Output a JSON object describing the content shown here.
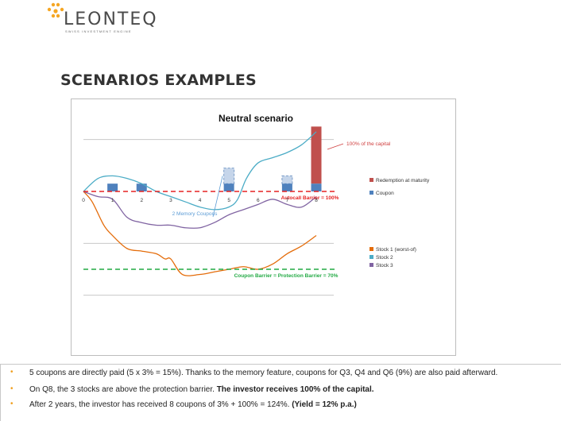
{
  "logo": {
    "brand": "LEONTEQ",
    "tagline": "SWISS INVESTMENT ENGINE",
    "accent": "#f5a623"
  },
  "page": {
    "title": "SCENARIOS EXAMPLES"
  },
  "chart_data": {
    "type": "bar",
    "title": "Neutral scenario",
    "x": [
      0,
      1,
      2,
      3,
      4,
      5,
      6,
      7,
      8
    ],
    "x_tick_labels": [
      "0",
      "1",
      "2",
      "3",
      "4",
      "5",
      "6",
      "7",
      "8"
    ],
    "grid": true,
    "legend_position": "right",
    "bar_series": [
      {
        "name": "Redemption at maturity",
        "color": "#c0504d",
        "points": [
          {
            "x": 8,
            "value": 100
          }
        ]
      },
      {
        "name": "Coupon",
        "color": "#4f81bd",
        "points": [
          {
            "x": 1,
            "value": 3
          },
          {
            "x": 2,
            "value": 3
          },
          {
            "x": 5,
            "value": 3
          },
          {
            "x": 7,
            "value": 3
          },
          {
            "x": 8,
            "value": 3
          }
        ]
      },
      {
        "name": "2 Memory Coupons",
        "color": "#c5d5ea",
        "points": [
          {
            "x": 5,
            "value": 6
          },
          {
            "x": 7,
            "value": 3
          }
        ]
      }
    ],
    "line_series": [
      {
        "name": "Stock 1 (worst-of)",
        "color": "#e46c0a",
        "x": [
          0,
          0.3,
          0.7,
          1,
          1.5,
          2,
          2.5,
          2.8,
          3,
          3.4,
          4,
          4.5,
          5,
          5.5,
          6,
          6.5,
          7,
          7.5,
          8
        ],
        "y": [
          100,
          96,
          87,
          83,
          78,
          77,
          76,
          74,
          74,
          68,
          68,
          69,
          70,
          71,
          70,
          72,
          76,
          79,
          83
        ]
      },
      {
        "name": "Stock 2",
        "color": "#4bacc6",
        "x": [
          0,
          0.5,
          1,
          1.5,
          2,
          2.5,
          3,
          3.5,
          4,
          4.5,
          5,
          5.3,
          5.6,
          6,
          6.5,
          7,
          7.5,
          8
        ],
        "y": [
          100,
          105,
          106,
          105,
          103,
          100,
          98,
          96,
          94,
          93,
          94,
          97,
          105,
          111,
          113,
          115,
          118,
          123
        ]
      },
      {
        "name": "Stock 3",
        "color": "#8064a2",
        "x": [
          0,
          0.5,
          1,
          1.5,
          2,
          2.5,
          3,
          3.5,
          4,
          4.5,
          5,
          5.5,
          6,
          6.5,
          7,
          7.5,
          8
        ],
        "y": [
          100,
          98,
          97,
          90,
          88,
          87,
          87,
          86,
          86,
          88,
          91,
          93,
          95,
          97,
          95,
          94,
          98
        ]
      }
    ],
    "barriers": [
      {
        "name": "Autocall Barrier",
        "label": "Autocall Barrier = 100%",
        "value": 100,
        "color": "#e52222"
      },
      {
        "name": "Coupon Barrier",
        "label": "Coupon Barrier = Protection Barrier = 70%",
        "value": 70,
        "color": "#22aa44"
      }
    ],
    "annotations": [
      {
        "label": "100% of the capital",
        "color": "#d04040"
      },
      {
        "label": "2 Memory Coupons",
        "color": "#5b9bd5"
      }
    ],
    "ylim": [
      40,
      130
    ]
  },
  "bullets": [
    {
      "text": "5 coupons are directly paid (5 x 3% = 15%). Thanks to the memory feature, coupons for Q3, Q4 and Q6 (9%) are also paid afterward.",
      "bold": ""
    },
    {
      "text": "On Q8, the 3 stocks are above the protection barrier. ",
      "bold": "The investor receives 100% of the capital."
    },
    {
      "text": "After 2 years, the investor has received 8 coupons of 3% + 100% = 124%. ",
      "bold": "(Yield = 12% p.a.)"
    }
  ]
}
